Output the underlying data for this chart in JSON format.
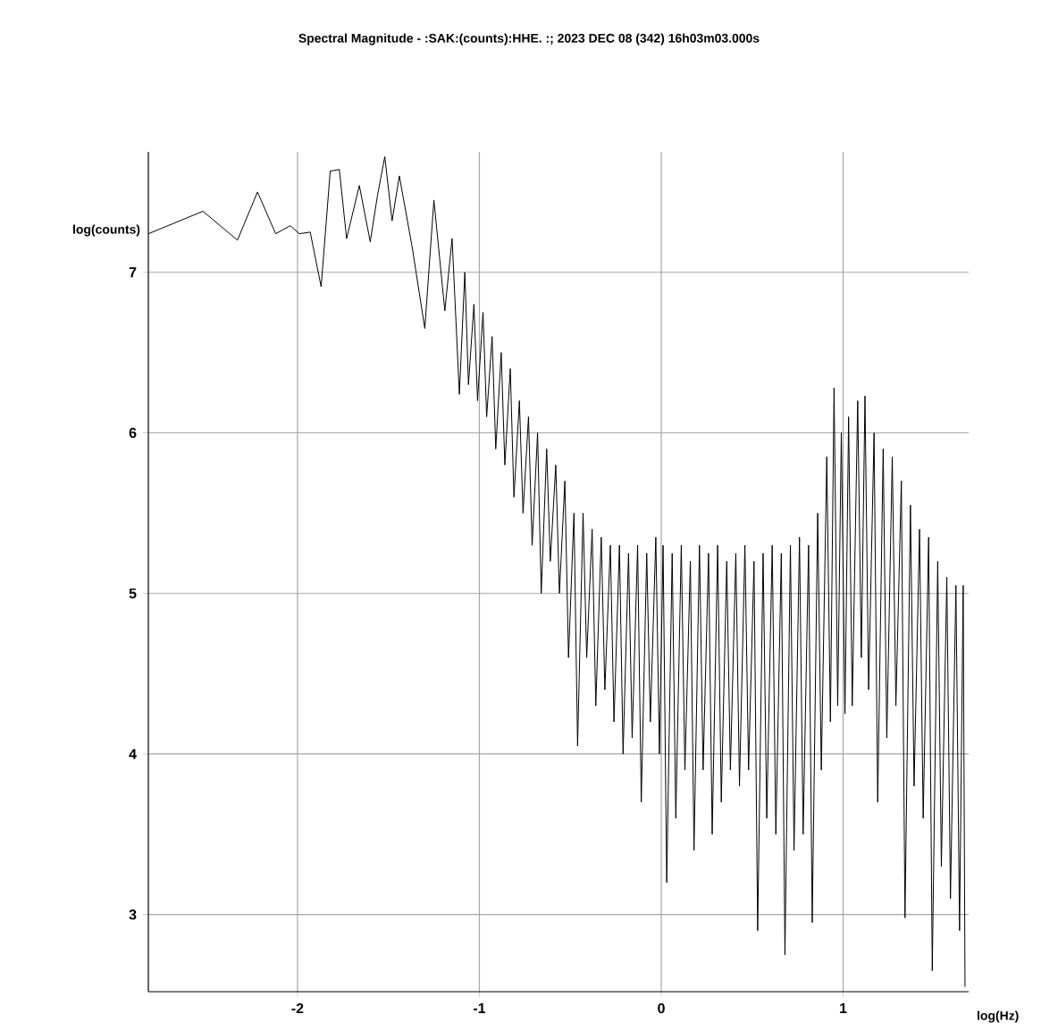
{
  "chart_data": {
    "type": "line",
    "title": "Spectral Magnitude -   :SAK:(counts):HHE.  :; 2023 DEC 08 (342)  16h03m03.000s",
    "xlabel": "log(Hz)",
    "ylabel": "log(counts)",
    "x": [
      -2.82,
      -2.52,
      -2.33,
      -2.22,
      -2.12,
      -2.04,
      -1.99,
      -1.93,
      -1.87,
      -1.82,
      -1.77,
      -1.73,
      -1.66,
      -1.6,
      -1.56,
      -1.52,
      -1.48,
      -1.44,
      -1.37,
      -1.3,
      -1.25,
      -1.19,
      -1.15,
      -1.11,
      -1.08,
      -1.06,
      -1.03,
      -1.01,
      -0.98,
      -0.96,
      -0.93,
      -0.91,
      -0.88,
      -0.86,
      -0.83,
      -0.81,
      -0.78,
      -0.76,
      -0.73,
      -0.71,
      -0.68,
      -0.66,
      -0.63,
      -0.61,
      -0.58,
      -0.56,
      -0.53,
      -0.51,
      -0.48,
      -0.46,
      -0.43,
      -0.41,
      -0.38,
      -0.36,
      -0.33,
      -0.31,
      -0.28,
      -0.26,
      -0.23,
      -0.21,
      -0.18,
      -0.16,
      -0.13,
      -0.11,
      -0.08,
      -0.06,
      -0.03,
      -0.01,
      0.01,
      0.03,
      0.06,
      0.08,
      0.11,
      0.13,
      0.16,
      0.18,
      0.21,
      0.23,
      0.26,
      0.28,
      0.31,
      0.33,
      0.36,
      0.38,
      0.41,
      0.43,
      0.46,
      0.48,
      0.51,
      0.53,
      0.56,
      0.58,
      0.61,
      0.63,
      0.66,
      0.68,
      0.71,
      0.73,
      0.76,
      0.78,
      0.81,
      0.83,
      0.86,
      0.88,
      0.91,
      0.93,
      0.95,
      0.97,
      0.99,
      1.01,
      1.03,
      1.05,
      1.08,
      1.1,
      1.12,
      1.14,
      1.17,
      1.19,
      1.22,
      1.24,
      1.27,
      1.29,
      1.32,
      1.34,
      1.37,
      1.39,
      1.42,
      1.44,
      1.47,
      1.49,
      1.52,
      1.54,
      1.57,
      1.59,
      1.62,
      1.64,
      1.66,
      1.67
    ],
    "values": [
      7.24,
      7.38,
      7.2,
      7.5,
      7.24,
      7.29,
      7.24,
      7.25,
      6.91,
      7.63,
      7.64,
      7.21,
      7.54,
      7.19,
      7.48,
      7.72,
      7.32,
      7.6,
      7.16,
      6.65,
      7.45,
      6.76,
      7.21,
      6.24,
      7.0,
      6.3,
      6.8,
      6.2,
      6.75,
      6.1,
      6.6,
      5.9,
      6.5,
      5.8,
      6.4,
      5.6,
      6.2,
      5.5,
      6.1,
      5.3,
      6.0,
      5.0,
      5.9,
      5.2,
      5.8,
      5.0,
      5.7,
      4.6,
      5.5,
      4.05,
      5.5,
      4.6,
      5.4,
      4.3,
      5.35,
      4.4,
      5.3,
      4.2,
      5.3,
      4.0,
      5.25,
      4.1,
      5.3,
      3.7,
      5.25,
      4.2,
      5.35,
      4.0,
      5.3,
      3.2,
      5.25,
      3.6,
      5.3,
      3.9,
      5.2,
      3.4,
      5.3,
      3.9,
      5.25,
      3.5,
      5.3,
      3.7,
      5.2,
      3.9,
      5.25,
      3.8,
      5.3,
      3.9,
      5.2,
      2.9,
      5.25,
      3.6,
      5.3,
      3.5,
      5.25,
      2.75,
      5.3,
      3.4,
      5.35,
      3.5,
      5.3,
      2.95,
      5.5,
      3.9,
      5.85,
      4.2,
      6.28,
      4.3,
      6.0,
      4.25,
      6.1,
      4.3,
      6.2,
      4.6,
      6.23,
      4.4,
      6.0,
      3.7,
      5.9,
      4.1,
      5.85,
      4.3,
      5.7,
      2.98,
      5.55,
      3.8,
      5.4,
      3.6,
      5.35,
      2.65,
      5.2,
      3.3,
      5.1,
      3.1,
      5.05,
      2.9,
      5.05,
      2.55
    ],
    "color": "#000000",
    "xlim": [
      -2.82,
      1.69
    ],
    "ylim": [
      2.52,
      7.75
    ],
    "xticks": [
      -2,
      -1,
      0,
      1
    ],
    "yticks": [
      3,
      4,
      5,
      6,
      7
    ],
    "grid": true
  }
}
